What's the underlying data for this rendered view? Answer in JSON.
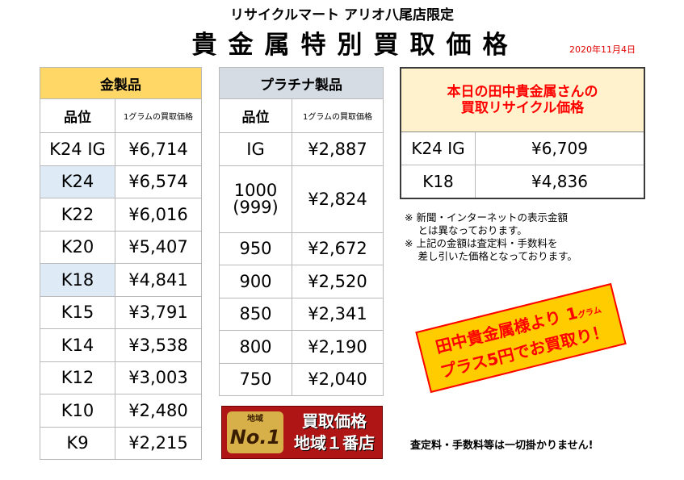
{
  "header": {
    "store_name": "リサイクルマート アリオ八尾店限定",
    "title": "貴金属特別買取価格",
    "date": "2020年11月4日"
  },
  "gold_table": {
    "category": "金製品",
    "col_grade": "品位",
    "col_price": "1グラムの買取価格",
    "rows": [
      {
        "grade": "K24 IG",
        "price": "¥6,714"
      },
      {
        "grade": "K24",
        "price": "¥6,574"
      },
      {
        "grade": "K22",
        "price": "¥6,016"
      },
      {
        "grade": "K20",
        "price": "¥5,407"
      },
      {
        "grade": "K18",
        "price": "¥4,841"
      },
      {
        "grade": "K15",
        "price": "¥3,791"
      },
      {
        "grade": "K14",
        "price": "¥3,538"
      },
      {
        "grade": "K12",
        "price": "¥3,003"
      },
      {
        "grade": "K10",
        "price": "¥2,480"
      },
      {
        "grade": "K9",
        "price": "¥2,215"
      }
    ]
  },
  "platinum_table": {
    "category": "プラチナ製品",
    "col_grade": "品位",
    "col_price": "1グラムの買取価格",
    "rows": [
      {
        "grade": "IG",
        "price": "¥2,887"
      },
      {
        "grade": "1000",
        "grade_sub": "(999)",
        "price": "¥2,824"
      },
      {
        "grade": "950",
        "price": "¥2,672"
      },
      {
        "grade": "900",
        "price": "¥2,520"
      },
      {
        "grade": "850",
        "price": "¥2,341"
      },
      {
        "grade": "800",
        "price": "¥2,190"
      },
      {
        "grade": "750",
        "price": "¥2,040"
      }
    ]
  },
  "today_box": {
    "heading_line1": "本日の田中貴金属さんの",
    "heading_line2": "買取リサイクル価格",
    "rows": [
      {
        "grade": "K24 IG",
        "price": "¥6,709"
      },
      {
        "grade": "K18",
        "price": "¥4,836"
      }
    ]
  },
  "notes": [
    "※ 新聞・インターネットの表示金額",
    "　 とは異なっております。",
    "※ 上記の金額は査定料・手数料を",
    "　 差し引いた価格となっております。"
  ],
  "promo": {
    "line1": "田中貴金属様より 1",
    "unit": "グラム",
    "line2": "プラス5円でお買取り！"
  },
  "banner": {
    "badge_top": "地域",
    "badge_main": "No.1",
    "line1": "買取価格",
    "line2": "地域１番店"
  },
  "footer_note": "査定料・手数料等は一切掛かりません!",
  "colors": {
    "gold_header": "#ffd766",
    "platinum_header": "#d6dce4",
    "highlight": "#deebf7",
    "today_header_bg": "#fff2cc",
    "accent_red": "#ff0000",
    "promo_yellow": "#ffcc00",
    "banner_red": "#b01515"
  }
}
